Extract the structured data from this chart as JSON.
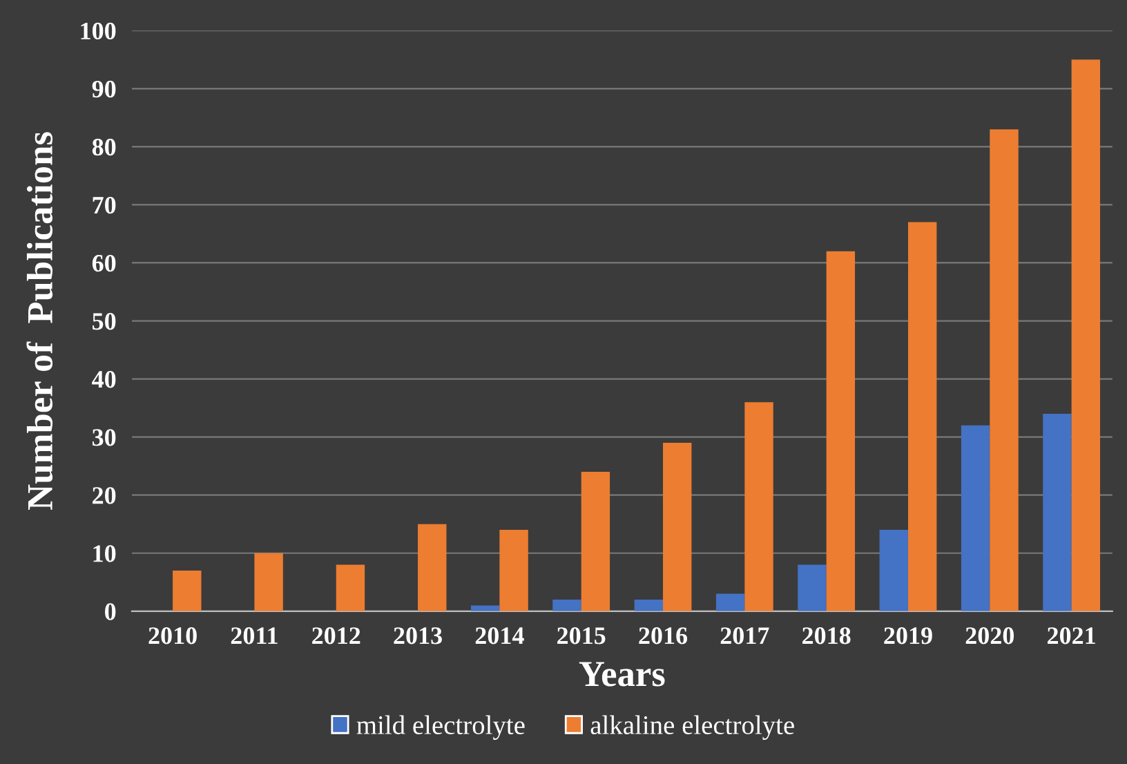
{
  "chart_data": {
    "type": "bar",
    "xlabel": "Years",
    "ylabel": "Number of  Publications",
    "categories": [
      "2010",
      "2011",
      "2012",
      "2013",
      "2014",
      "2015",
      "2016",
      "2017",
      "2018",
      "2019",
      "2020",
      "2021"
    ],
    "series": [
      {
        "name": "mild electrolyte",
        "color": "#4472c4",
        "values": [
          0,
          0,
          0,
          0,
          1,
          2,
          2,
          3,
          8,
          14,
          32,
          34
        ]
      },
      {
        "name": "alkaline electrolyte",
        "color": "#ed7d31",
        "values": [
          7,
          10,
          8,
          15,
          14,
          24,
          29,
          36,
          62,
          67,
          83,
          95
        ]
      }
    ],
    "ylim": [
      0,
      100
    ],
    "yticks": [
      0,
      10,
      20,
      30,
      40,
      50,
      60,
      70,
      80,
      90,
      100
    ],
    "grid": "y",
    "legend": "bottom"
  }
}
